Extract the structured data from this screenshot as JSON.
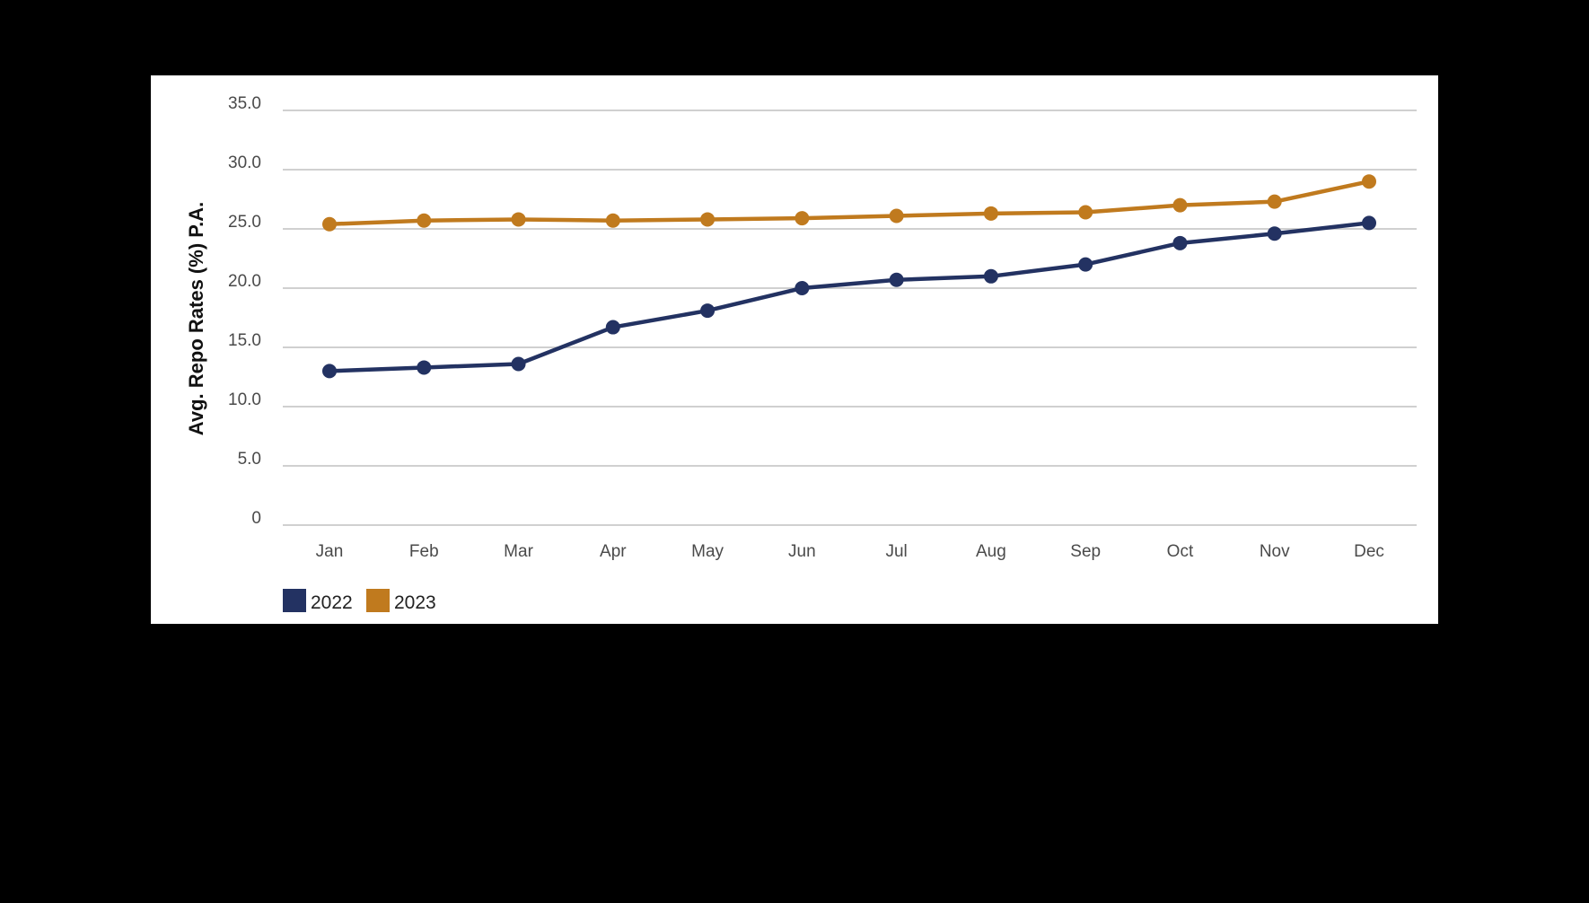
{
  "chart_data": {
    "type": "line",
    "categories": [
      "Jan",
      "Feb",
      "Mar",
      "Apr",
      "May",
      "Jun",
      "Jul",
      "Aug",
      "Sep",
      "Oct",
      "Nov",
      "Dec"
    ],
    "series": [
      {
        "name": "2022",
        "color": "#233262",
        "values": [
          13.0,
          13.3,
          13.6,
          16.7,
          18.1,
          20.0,
          20.7,
          21.0,
          22.0,
          23.8,
          24.6,
          25.5
        ]
      },
      {
        "name": "2023",
        "color": "#c07a1e",
        "values": [
          25.4,
          25.7,
          25.8,
          25.7,
          25.8,
          25.9,
          26.1,
          26.3,
          26.4,
          27.0,
          27.3,
          29.0
        ]
      }
    ],
    "yticks": [
      "0",
      "5.0",
      "10.0",
      "15.0",
      "20.0",
      "25.0",
      "30.0",
      "35.0"
    ],
    "ylim": [
      0,
      35
    ],
    "ylabel": "Avg. Repo Rates (%) P.A.",
    "xlabel": "",
    "title": "",
    "grid": true,
    "legend_position": "bottom-left"
  }
}
